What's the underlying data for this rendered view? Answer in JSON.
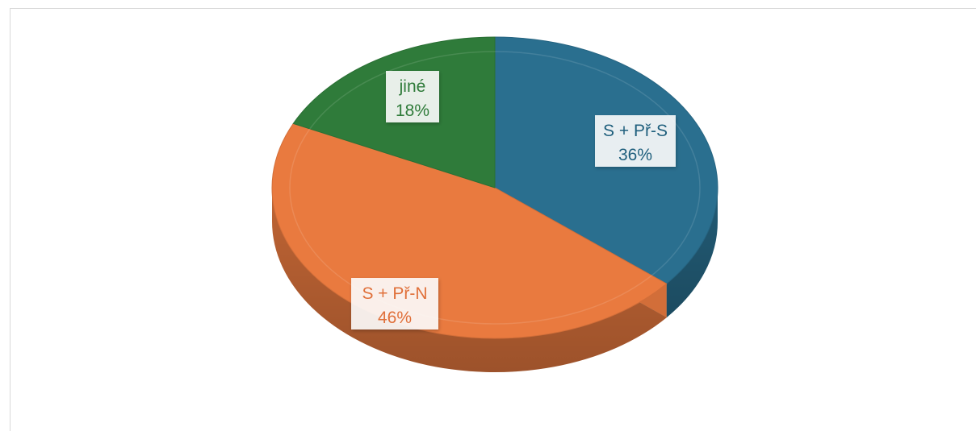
{
  "chart_data": {
    "type": "pie",
    "style": "3d",
    "slices": [
      {
        "label": "S + Př-S",
        "value": 36,
        "value_label": "36%",
        "color": "#2a6f8f",
        "text_color": "#1f5f7d"
      },
      {
        "label": "S + Př-N",
        "value": 46,
        "value_label": "46%",
        "color": "#e97a3f",
        "text_color": "#e0703a"
      },
      {
        "label": "jiné",
        "value": 18,
        "value_label": "18%",
        "color": "#2f7b3a",
        "text_color": "#2f7b3a"
      }
    ],
    "legend": "none",
    "data_labels": "on-slice"
  }
}
